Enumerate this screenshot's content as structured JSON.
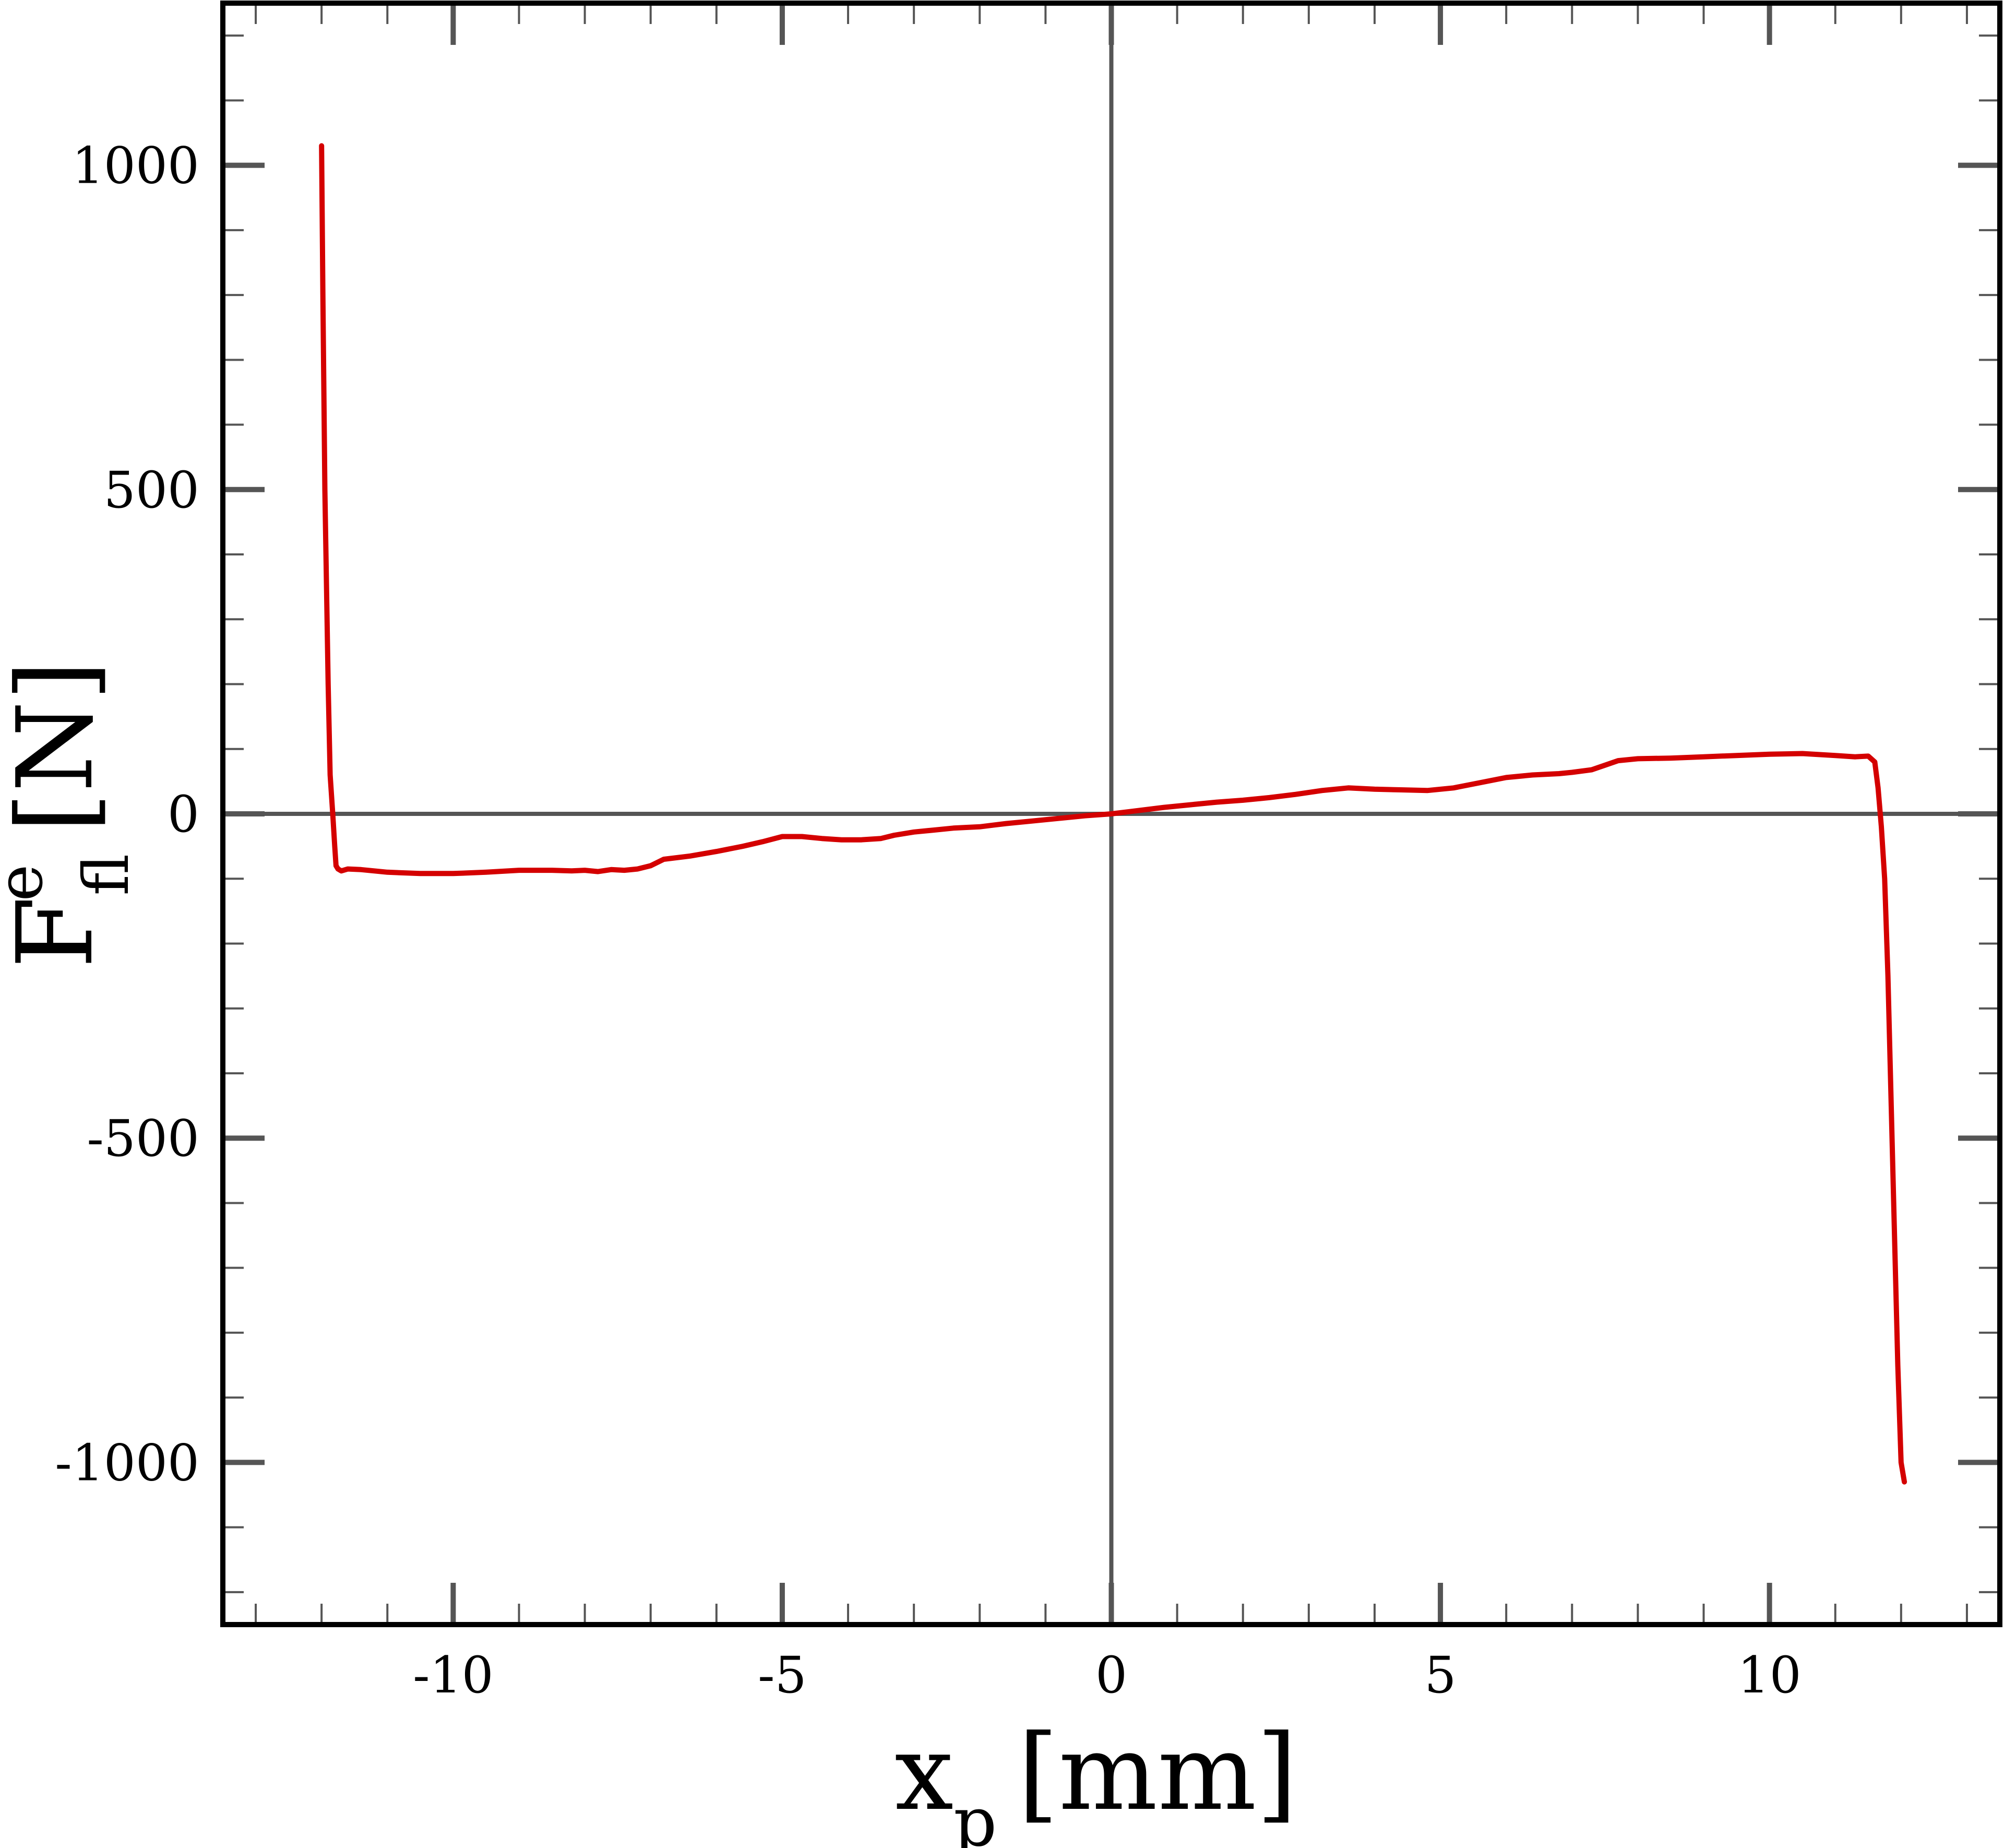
{
  "chart_data": {
    "type": "line",
    "xlabel": {
      "main": "x",
      "sub": "p",
      "unit": "[mm]"
    },
    "ylabel": {
      "main": "F",
      "sub": "fl",
      "sup": "e",
      "unit": "[N]"
    },
    "xlim": [
      -13.5,
      13.5
    ],
    "ylim": [
      -1250,
      1250
    ],
    "x_ticks": [
      -10,
      -5,
      0,
      5,
      10
    ],
    "x_tick_labels": [
      "-10",
      "-5",
      "0",
      "5",
      "10"
    ],
    "y_ticks": [
      1000,
      500,
      0,
      -500,
      -1000
    ],
    "y_tick_labels": [
      "1000",
      "500",
      "0",
      "-500",
      "-1000"
    ],
    "x_minor_step": 1,
    "y_minor_step": 100,
    "zero_lines": true,
    "grid": false,
    "legend": "none",
    "colors": {
      "series": "#d40000",
      "frame": "#000000",
      "ticks": "#555555",
      "zero_line": "#555555"
    },
    "series": [
      {
        "x": [
          -12.0,
          -11.98,
          -11.95,
          -11.9,
          -11.87,
          -11.83,
          -11.8,
          -11.78,
          -11.75,
          -11.7,
          -11.6,
          -11.4,
          -11.2,
          -11.0,
          -10.5,
          -10.0,
          -9.5,
          -9.0,
          -8.5,
          -8.2,
          -8.0,
          -7.8,
          -7.6,
          -7.4,
          -7.2,
          -7.0,
          -6.8,
          -6.4,
          -6.0,
          -5.6,
          -5.3,
          -5.0,
          -4.7,
          -4.4,
          -4.1,
          -3.8,
          -3.5,
          -3.3,
          -3.0,
          -2.7,
          -2.4,
          -2.0,
          -1.6,
          -1.2,
          -0.8,
          -0.4,
          0.0,
          0.4,
          0.8,
          1.2,
          1.6,
          2.0,
          2.4,
          2.8,
          3.2,
          3.6,
          4.0,
          4.4,
          4.8,
          5.2,
          5.6,
          6.0,
          6.4,
          6.8,
          7.0,
          7.3,
          7.7,
          8.0,
          8.5,
          9.0,
          9.5,
          10.0,
          10.5,
          11.0,
          11.3,
          11.5,
          11.6,
          11.65,
          11.7,
          11.75,
          11.8,
          11.85,
          11.9,
          11.95,
          12.0,
          12.05
        ],
        "y": [
          1030,
          800,
          500,
          200,
          60,
          0,
          -50,
          -80,
          -85,
          -88,
          -85,
          -86,
          -88,
          -90,
          -92,
          -92,
          -90,
          -87,
          -87,
          -88,
          -87,
          -89,
          -86,
          -87,
          -85,
          -80,
          -70,
          -65,
          -58,
          -50,
          -43,
          -35,
          -35,
          -38,
          -40,
          -40,
          -38,
          -33,
          -28,
          -25,
          -22,
          -20,
          -15,
          -11,
          -7,
          -3,
          0,
          5,
          10,
          14,
          18,
          21,
          25,
          30,
          36,
          40,
          38,
          37,
          36,
          40,
          48,
          56,
          60,
          62,
          64,
          68,
          82,
          85,
          86,
          88,
          90,
          92,
          93,
          90,
          88,
          89,
          80,
          40,
          -20,
          -100,
          -250,
          -450,
          -650,
          -850,
          -1000,
          -1030
        ],
        "color": "#d40000"
      }
    ]
  }
}
